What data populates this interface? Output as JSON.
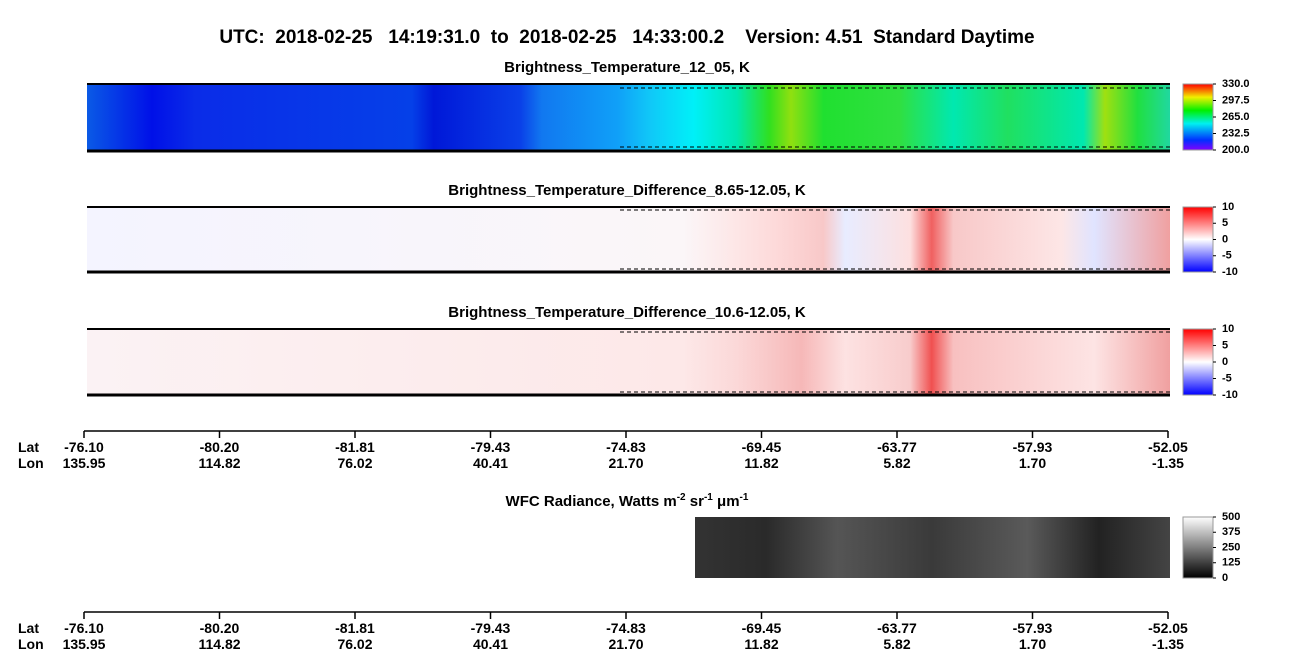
{
  "title": "UTC:  2018-02-25   14:19:31.0  to  2018-02-25   14:33:00.2    Version: 4.51  Standard Daytime",
  "panels": [
    {
      "title": "Brightness_Temperature_12_05, K",
      "clim": [
        200,
        330
      ],
      "colorbar_ticks": [
        {
          "value": 330,
          "label": "330.0"
        },
        {
          "value": 297.5,
          "label": "297.5"
        },
        {
          "value": 265,
          "label": "265.0"
        },
        {
          "value": 232.5,
          "label": "232.5"
        },
        {
          "value": 200,
          "label": "200.0"
        }
      ]
    },
    {
      "title": "Brightness_Temperature_Difference_8.65-12.05, K",
      "clim": [
        -10,
        10
      ],
      "colorbar_ticks": [
        10,
        5,
        0,
        -5,
        -10
      ]
    },
    {
      "title": "Brightness_Temperature_Difference_10.6-12.05, K",
      "clim": [
        -10,
        10
      ],
      "colorbar_ticks": [
        10,
        5,
        0,
        -5,
        -10
      ]
    },
    {
      "title_parts": [
        "WFC Radiance, Watts m",
        "-2",
        " sr",
        "-1",
        " μm",
        "-1"
      ],
      "clim": [
        0,
        500
      ],
      "colorbar_ticks": [
        500,
        375,
        250,
        125,
        0
      ]
    }
  ],
  "axes": [
    {
      "row_labels": [
        "Lat",
        "Lon"
      ],
      "lat": [
        "-76.10",
        "-80.20",
        "-81.81",
        "-79.43",
        "-74.83",
        "-69.45",
        "-63.77",
        "-57.93",
        "-52.05"
      ],
      "lon": [
        "135.95",
        "114.82",
        "76.02",
        "40.41",
        "21.70",
        "11.82",
        "5.82",
        "1.70",
        "-1.35"
      ]
    },
    {
      "row_labels": [
        "Lat",
        "Lon"
      ],
      "lat": [
        "-76.10",
        "-80.20",
        "-81.81",
        "-79.43",
        "-74.83",
        "-69.45",
        "-63.77",
        "-57.93",
        "-52.05"
      ],
      "lon": [
        "135.95",
        "114.82",
        "76.02",
        "40.41",
        "21.70",
        "11.82",
        "5.82",
        "1.70",
        "-1.35"
      ]
    }
  ]
}
